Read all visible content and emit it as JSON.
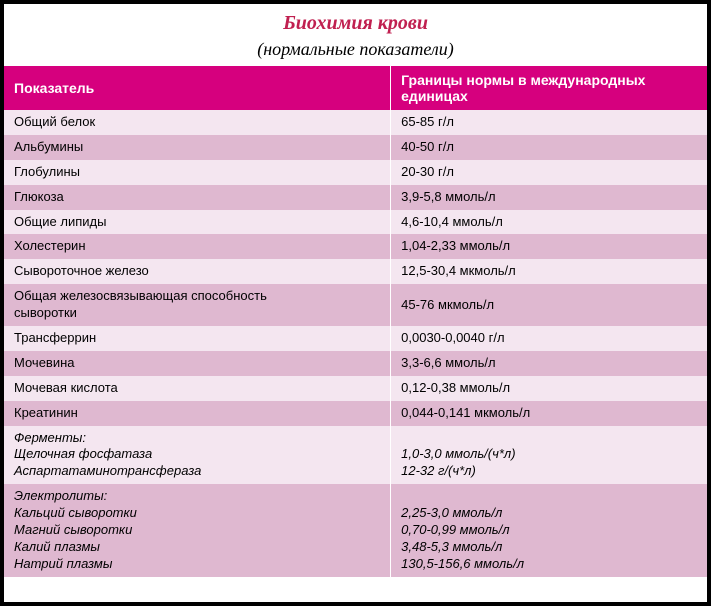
{
  "title": "Биохимия крови",
  "subtitle": "(нормальные показатели)",
  "title_color": "#c02050",
  "subtitle_color": "#000000",
  "header_bg": "#d6007e",
  "row_odd_bg": "#f4e6f0",
  "row_even_bg": "#dfb8d0",
  "text_color": "#000000",
  "columns": [
    "Показатель",
    "Границы нормы в международных единицах"
  ],
  "rows": [
    {
      "param": "Общий белок",
      "value": "65-85 г/л"
    },
    {
      "param": "Альбумины",
      "value": "40-50 г/л"
    },
    {
      "param": "Глобулины",
      "value": "20-30 г/л"
    },
    {
      "param": "Глюкоза",
      "value": "3,9-5,8 ммоль/л"
    },
    {
      "param": "Общие липиды",
      "value": "4,6-10,4 ммоль/л"
    },
    {
      "param": "Холестерин",
      "value": "1,04-2,33 ммоль/л"
    },
    {
      "param": "Сывороточное железо",
      "value": "12,5-30,4 мкмоль/л"
    },
    {
      "param": "Общая железосвязывающая способность\nсыворотки",
      "value": "45-76 мкмоль/л"
    },
    {
      "param": "Трансферрин",
      "value": "0,0030-0,0040 г/л"
    },
    {
      "param": "Мочевина",
      "value": "3,3-6,6 ммоль/л"
    },
    {
      "param": "Мочевая кислота",
      "value": "0,12-0,38 ммоль/л"
    },
    {
      "param": "Креатинин",
      "value": "0,044-0,141 мкмоль/л"
    },
    {
      "param": "Ферменты:\nЩелочная фосфатаза\nАспартатаминотрансфераза",
      "value": "\n1,0-3,0 ммоль/(ч*л)\n12-32 г/(ч*л)",
      "italic": true
    },
    {
      "param": "Электролиты:\n Кальций сыворотки\nМагний сыворотки\nКалий плазмы\nНатрий плазмы",
      "value": "\n2,25-3,0 ммоль/л\n0,70-0,99 ммоль/л\n3,48-5,3 ммоль/л\n130,5-156,6 ммоль/л",
      "italic": true
    }
  ]
}
